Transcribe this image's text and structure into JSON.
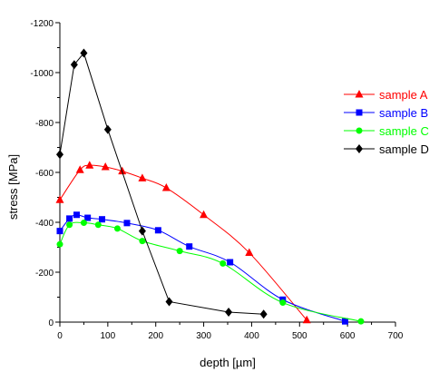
{
  "chart_data": {
    "type": "line",
    "title": "",
    "xlabel": "depth [µm]",
    "ylabel": "stress [MPa]",
    "xlim": [
      0,
      700
    ],
    "ylim": [
      0,
      -1200
    ],
    "y_axis_direction": "down-positive",
    "x_ticks": [
      0,
      100,
      200,
      300,
      400,
      500,
      600,
      700
    ],
    "y_ticks": [
      0,
      -200,
      -400,
      -600,
      -800,
      -1000,
      -1200
    ],
    "grid": false,
    "legend_position": "right",
    "series": [
      {
        "name": "sample A",
        "color": "#ff0000",
        "marker": "triangle",
        "points": [
          [
            0,
            -490
          ],
          [
            42,
            -610
          ],
          [
            62,
            -628
          ],
          [
            95,
            -622
          ],
          [
            130,
            -605
          ],
          [
            172,
            -577
          ],
          [
            222,
            -538
          ],
          [
            300,
            -430
          ],
          [
            395,
            -278
          ],
          [
            515,
            -8
          ]
        ]
      },
      {
        "name": "sample B",
        "color": "#0000ff",
        "marker": "square",
        "points": [
          [
            0,
            -365
          ],
          [
            20,
            -415
          ],
          [
            35,
            -430
          ],
          [
            58,
            -418
          ],
          [
            88,
            -412
          ],
          [
            140,
            -397
          ],
          [
            205,
            -368
          ],
          [
            270,
            -303
          ],
          [
            355,
            -240
          ],
          [
            465,
            -90
          ],
          [
            595,
            -3
          ]
        ]
      },
      {
        "name": "sample C",
        "color": "#00ff00",
        "marker": "circle",
        "points": [
          [
            0,
            -312
          ],
          [
            20,
            -390
          ],
          [
            50,
            -398
          ],
          [
            80,
            -390
          ],
          [
            120,
            -375
          ],
          [
            172,
            -325
          ],
          [
            250,
            -285
          ],
          [
            340,
            -235
          ],
          [
            465,
            -78
          ],
          [
            628,
            -3
          ]
        ]
      },
      {
        "name": "sample D",
        "color": "#000000",
        "marker": "diamond",
        "points": [
          [
            0,
            -672
          ],
          [
            30,
            -1032
          ],
          [
            50,
            -1078
          ],
          [
            100,
            -772
          ],
          [
            172,
            -365
          ],
          [
            228,
            -82
          ],
          [
            352,
            -40
          ],
          [
            425,
            -32
          ]
        ]
      }
    ]
  }
}
